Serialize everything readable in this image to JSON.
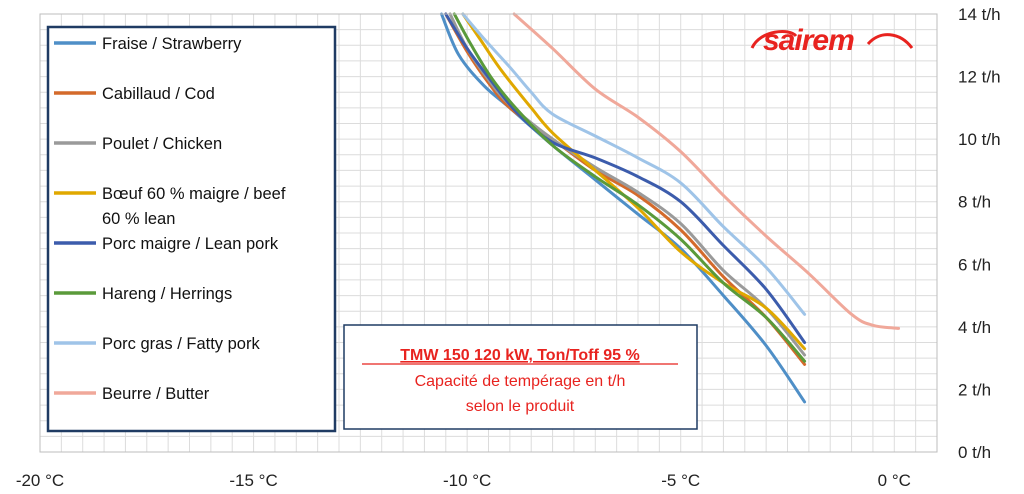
{
  "logo": {
    "text": "sairem",
    "color": "#e8231f"
  },
  "annotation": {
    "title": "TMW 150  120 kW,  Ton/Toff 95 %",
    "line1": "Capacité de tempérage en t/h",
    "line2": "selon le produit",
    "color": "#e8231f"
  },
  "chart_data": {
    "type": "line",
    "title": "",
    "xlabel": "",
    "ylabel": "",
    "xlim": [
      -20,
      1
    ],
    "ylim": [
      0,
      14
    ],
    "x_ticks": [
      -20,
      -15,
      -10,
      -5,
      0
    ],
    "x_tick_labels": [
      "-20 °C",
      "-15 °C",
      "-10 °C",
      "-5 °C",
      "0 °C"
    ],
    "y_ticks": [
      0,
      2,
      4,
      6,
      8,
      10,
      12,
      14
    ],
    "y_tick_labels": [
      "0 t/h",
      "2 t/h",
      "4 t/h",
      "6 t/h",
      "8 t/h",
      "10 t/h",
      "12 t/h",
      "14 t/h"
    ],
    "grid": true,
    "legend_position": "left",
    "series": [
      {
        "name": "Fraise / Strawberry",
        "color": "#4f8fc7",
        "points": [
          [
            -10.6,
            14
          ],
          [
            -10.2,
            12.7
          ],
          [
            -9.6,
            11.7
          ],
          [
            -9,
            11
          ],
          [
            -8,
            9.8
          ],
          [
            -7,
            8.7
          ],
          [
            -6,
            7.6
          ],
          [
            -5,
            6.5
          ],
          [
            -4,
            5
          ],
          [
            -3,
            3.4
          ],
          [
            -2.1,
            1.6
          ]
        ]
      },
      {
        "name": "Cabillaud / Cod",
        "color": "#d46a2b",
        "points": [
          [
            -10.5,
            14
          ],
          [
            -10,
            12.8
          ],
          [
            -9.5,
            11.8
          ],
          [
            -9,
            11
          ],
          [
            -8,
            10
          ],
          [
            -7,
            9
          ],
          [
            -6,
            8.2
          ],
          [
            -5,
            7.1
          ],
          [
            -4,
            5.6
          ],
          [
            -3,
            4.3
          ],
          [
            -2.1,
            2.8
          ]
        ]
      },
      {
        "name": "Poulet / Chicken",
        "color": "#9a9a9a",
        "points": [
          [
            -10.4,
            14
          ],
          [
            -10,
            12.9
          ],
          [
            -9.5,
            11.9
          ],
          [
            -9,
            11.1
          ],
          [
            -8,
            10
          ],
          [
            -7,
            9.1
          ],
          [
            -6,
            8.3
          ],
          [
            -5,
            7.3
          ],
          [
            -4,
            5.8
          ],
          [
            -3,
            4.6
          ],
          [
            -2.1,
            3.1
          ]
        ]
      },
      {
        "name": "Bœuf 60 % maigre / beef 60 % lean",
        "color": "#e0a800",
        "points": [
          [
            -10.1,
            14
          ],
          [
            -9.7,
            13.2
          ],
          [
            -9.2,
            12.2
          ],
          [
            -8.5,
            11
          ],
          [
            -8,
            10.2
          ],
          [
            -7,
            9
          ],
          [
            -6,
            7.8
          ],
          [
            -5,
            6.4
          ],
          [
            -4,
            5.4
          ],
          [
            -3,
            4.6
          ],
          [
            -2.1,
            3.3
          ]
        ]
      },
      {
        "name": "Porc maigre / Lean pork",
        "color": "#3c5cac",
        "points": [
          [
            -10.5,
            14
          ],
          [
            -10,
            12.9
          ],
          [
            -9.4,
            11.8
          ],
          [
            -8.8,
            10.8
          ],
          [
            -8,
            9.9
          ],
          [
            -7,
            9.4
          ],
          [
            -6,
            8.8
          ],
          [
            -5,
            8
          ],
          [
            -4,
            6.6
          ],
          [
            -3,
            5.2
          ],
          [
            -2.1,
            3.5
          ]
        ]
      },
      {
        "name": "Hareng / Herrings",
        "color": "#5a9a3a",
        "points": [
          [
            -10.3,
            14
          ],
          [
            -9.9,
            13
          ],
          [
            -9.4,
            11.9
          ],
          [
            -8.8,
            10.9
          ],
          [
            -8,
            9.8
          ],
          [
            -7,
            8.8
          ],
          [
            -6,
            7.9
          ],
          [
            -5,
            6.8
          ],
          [
            -4,
            5.4
          ],
          [
            -3,
            4.3
          ],
          [
            -2.1,
            2.9
          ]
        ]
      },
      {
        "name": "Porc gras / Fatty pork",
        "color": "#9fc4e8",
        "points": [
          [
            -10.1,
            14
          ],
          [
            -9.6,
            13.2
          ],
          [
            -9,
            12.3
          ],
          [
            -8.5,
            11.5
          ],
          [
            -8,
            10.8
          ],
          [
            -7,
            10.1
          ],
          [
            -6,
            9.4
          ],
          [
            -5,
            8.6
          ],
          [
            -4,
            7.2
          ],
          [
            -3,
            5.9
          ],
          [
            -2.1,
            4.4
          ]
        ]
      },
      {
        "name": "Beurre / Butter",
        "color": "#f0a89a",
        "points": [
          [
            -8.9,
            14
          ],
          [
            -8,
            12.9
          ],
          [
            -7,
            11.6
          ],
          [
            -6,
            10.7
          ],
          [
            -5,
            9.6
          ],
          [
            -4,
            8.2
          ],
          [
            -3,
            6.9
          ],
          [
            -2,
            5.7
          ],
          [
            -1,
            4.4
          ],
          [
            -0.5,
            4.05
          ],
          [
            0.1,
            3.95
          ]
        ]
      }
    ]
  }
}
